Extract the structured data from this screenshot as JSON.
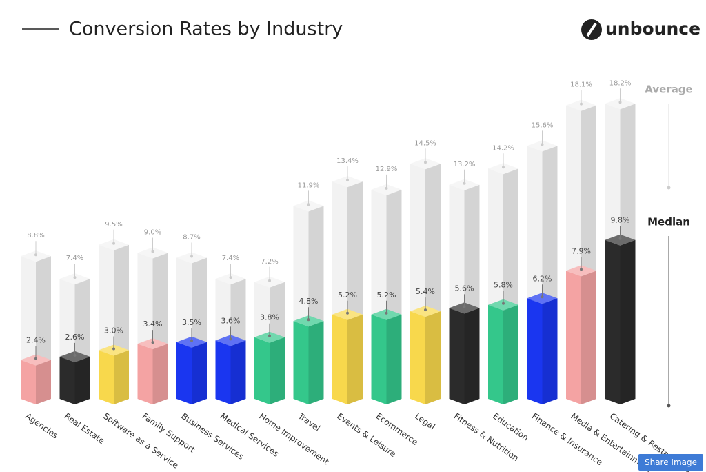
{
  "chart_data": {
    "type": "bar3d",
    "title": "Conversion Rates by Industry",
    "brand": "unbounce",
    "categories": [
      "Agencies",
      "Real Estate",
      "Software as a Service",
      "Family Support",
      "Business Services",
      "Medical Services",
      "Home Improvement",
      "Travel",
      "Events & Leisure",
      "Ecommerce",
      "Legal",
      "Fitness & Nutrition",
      "Education",
      "Finance & Insurance",
      "Media & Entertainment",
      "Catering & Restaurants"
    ],
    "series": [
      {
        "name": "Average",
        "color": "#f2f2f2",
        "values": [
          8.8,
          7.4,
          9.5,
          9.0,
          8.7,
          7.4,
          7.2,
          11.9,
          13.4,
          12.9,
          14.5,
          13.2,
          14.2,
          15.6,
          18.1,
          18.2
        ],
        "value_labels": [
          "8.8%",
          "7.4%",
          "9.5%",
          "9.0%",
          "8.7%",
          "7.4%",
          "7.2%",
          "11.9%",
          "13.4%",
          "12.9%",
          "14.5%",
          "13.2%",
          "14.2%",
          "15.6%",
          "18.1%",
          "18.2%"
        ]
      },
      {
        "name": "Median",
        "colors": [
          "#f4a3a3",
          "#2b2b2b",
          "#f8d84c",
          "#f4a3a3",
          "#1a36f0",
          "#1a36f0",
          "#34c78b",
          "#34c78b",
          "#f8d84c",
          "#34c78b",
          "#f8d84c",
          "#2b2b2b",
          "#34c78b",
          "#1a36f0",
          "#f4a3a3",
          "#2b2b2b"
        ],
        "values": [
          2.4,
          2.6,
          3.0,
          3.4,
          3.5,
          3.6,
          3.8,
          4.8,
          5.2,
          5.2,
          5.4,
          5.6,
          5.8,
          6.2,
          7.9,
          9.8
        ],
        "value_labels": [
          "2.4%",
          "2.6%",
          "3.0%",
          "3.4%",
          "3.5%",
          "3.6%",
          "3.8%",
          "4.8%",
          "5.2%",
          "5.2%",
          "5.4%",
          "5.6%",
          "5.8%",
          "6.2%",
          "7.9%",
          "9.8%"
        ]
      }
    ],
    "share_button": "Share Image"
  }
}
